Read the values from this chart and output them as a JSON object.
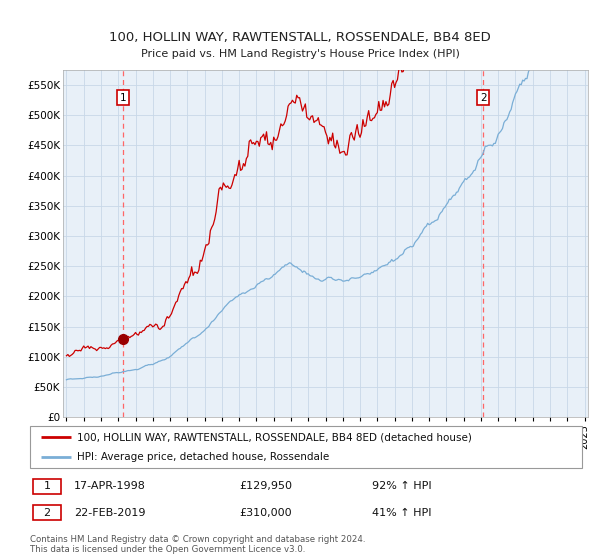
{
  "title": "100, HOLLIN WAY, RAWTENSTALL, ROSSENDALE, BB4 8ED",
  "subtitle": "Price paid vs. HM Land Registry's House Price Index (HPI)",
  "ylim": [
    0,
    575000
  ],
  "yticks": [
    0,
    50000,
    100000,
    150000,
    200000,
    250000,
    300000,
    350000,
    400000,
    450000,
    500000,
    550000
  ],
  "ytick_labels": [
    "£0",
    "£50K",
    "£100K",
    "£150K",
    "£200K",
    "£250K",
    "£300K",
    "£350K",
    "£400K",
    "£450K",
    "£500K",
    "£550K"
  ],
  "sale1_date": "17-APR-1998",
  "sale1_price": 129950,
  "sale1_year": 1998.29,
  "sale1_pct": "92% ↑ HPI",
  "sale2_date": "22-FEB-2019",
  "sale2_price": 310000,
  "sale2_year": 2019.13,
  "sale2_pct": "41% ↑ HPI",
  "red_line_color": "#cc0000",
  "blue_line_color": "#7aaed6",
  "marker_color": "#990000",
  "vline_color": "#ff6666",
  "background_color": "#ffffff",
  "plot_bg_color": "#e8f0f8",
  "grid_color": "#c8d8e8",
  "legend_label_red": "100, HOLLIN WAY, RAWTENSTALL, ROSSENDALE, BB4 8ED (detached house)",
  "legend_label_blue": "HPI: Average price, detached house, Rossendale",
  "footnote": "Contains HM Land Registry data © Crown copyright and database right 2024.\nThis data is licensed under the Open Government Licence v3.0.",
  "x_start_year": 1995,
  "x_end_year": 2025
}
